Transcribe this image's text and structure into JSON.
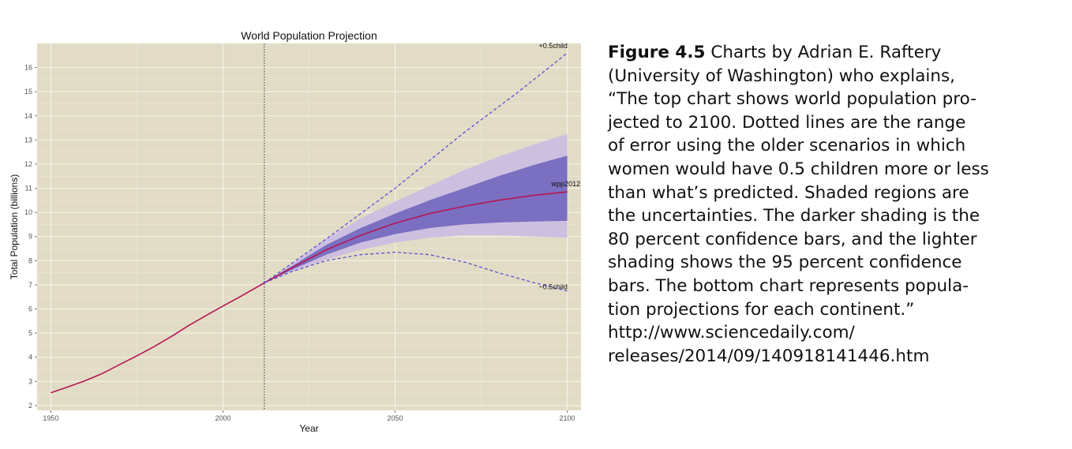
{
  "chart_data": {
    "type": "line",
    "title": "World Population Projection",
    "xlabel": "Year",
    "ylabel": "Total Population (billions)",
    "xlim": [
      1946,
      2104
    ],
    "ylim": [
      1.8,
      17.0
    ],
    "xticks": [
      1950,
      2000,
      2050,
      2100
    ],
    "yticks": [
      2,
      3,
      4,
      5,
      6,
      7,
      8,
      9,
      10,
      11,
      12,
      13,
      14,
      15,
      16
    ],
    "grid": true,
    "vline_x": 2012,
    "series": [
      {
        "name": "wpp2012",
        "x": [
          1950,
          1955,
          1960,
          1965,
          1970,
          1975,
          1980,
          1985,
          1990,
          1995,
          2000,
          2005,
          2012,
          2020,
          2030,
          2040,
          2050,
          2060,
          2070,
          2080,
          2090,
          2100
        ],
        "y": [
          2.53,
          2.77,
          3.03,
          3.33,
          3.7,
          4.06,
          4.44,
          4.86,
          5.31,
          5.72,
          6.12,
          6.51,
          7.08,
          7.7,
          8.45,
          9.05,
          9.55,
          9.95,
          10.25,
          10.5,
          10.7,
          10.85
        ]
      },
      {
        "name": "+0.5child",
        "x": [
          2012,
          2030,
          2050,
          2070,
          2085,
          2100
        ],
        "y": [
          7.08,
          8.9,
          11.0,
          13.3,
          14.9,
          16.6
        ]
      },
      {
        "name": "−0.5child",
        "x": [
          2012,
          2020,
          2030,
          2040,
          2050,
          2060,
          2070,
          2080,
          2090,
          2100
        ],
        "y": [
          7.08,
          7.55,
          8.0,
          8.25,
          8.35,
          8.25,
          7.95,
          7.5,
          7.1,
          6.75
        ]
      }
    ],
    "bands": [
      {
        "level": "95",
        "color": "#cdbfe0",
        "x": [
          2012,
          2020,
          2030,
          2040,
          2050,
          2060,
          2070,
          2080,
          2090,
          2100
        ],
        "lower": [
          7.08,
          7.55,
          8.05,
          8.45,
          8.75,
          8.95,
          9.05,
          9.05,
          9.0,
          8.95
        ],
        "upper": [
          7.08,
          7.85,
          8.9,
          9.75,
          10.45,
          11.1,
          11.75,
          12.3,
          12.8,
          13.25
        ]
      },
      {
        "level": "80",
        "color": "#7b6fc2",
        "x": [
          2012,
          2020,
          2030,
          2040,
          2050,
          2060,
          2070,
          2080,
          2090,
          2100
        ],
        "lower": [
          7.08,
          7.62,
          8.25,
          8.75,
          9.1,
          9.35,
          9.5,
          9.58,
          9.62,
          9.65
        ],
        "upper": [
          7.08,
          7.78,
          8.65,
          9.35,
          9.95,
          10.5,
          11.0,
          11.5,
          11.95,
          12.35
        ]
      }
    ],
    "colors": {
      "panel": "#e2dcc6",
      "grid": "#f6f3ea",
      "median": "#b5174f",
      "scenario": "#5551d0",
      "vline": "#333333"
    }
  },
  "caption": {
    "lines": [
      {
        "bold": "Figure 4.5",
        "text": " Charts by Adrian E. Raftery"
      },
      {
        "text": "(University of Washington) who explains,"
      },
      {
        "text": "“The top chart shows world population pro-"
      },
      {
        "text": "jected to 2100. Dotted lines are the range"
      },
      {
        "text": "of error using the older scenarios in which"
      },
      {
        "text": "women would have 0.5 children more or less"
      },
      {
        "text": "than what’s predicted. Shaded regions are"
      },
      {
        "text": "the uncertainties. The darker shading is the"
      },
      {
        "text": "80 percent confidence bars, and the lighter"
      },
      {
        "text": "shading shows the 95 percent confidence"
      },
      {
        "text": "bars. The bottom chart represents popula-"
      },
      {
        "text": "tion projections for each continent.”"
      },
      {
        "text": "http://www.sciencedaily.com/"
      },
      {
        "text": "releases/2014/09/140918141446.htm"
      }
    ]
  }
}
